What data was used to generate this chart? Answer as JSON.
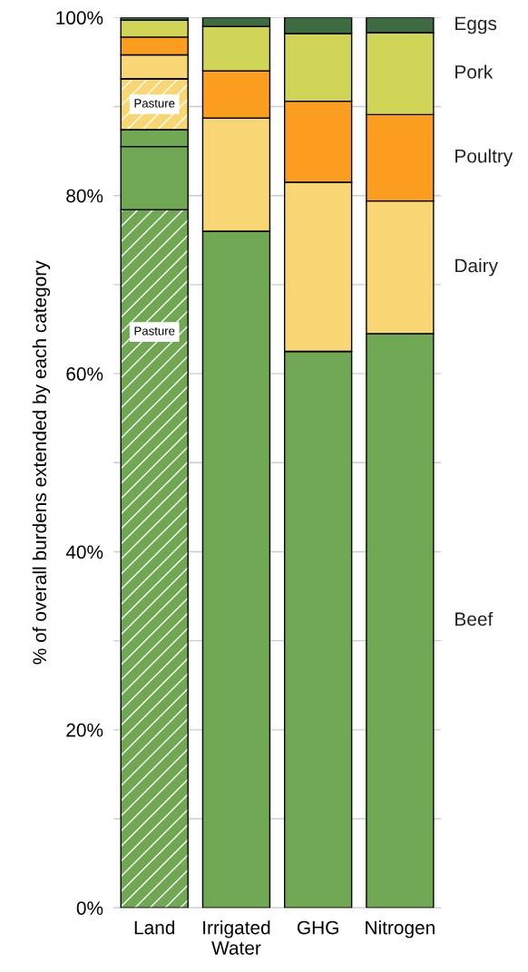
{
  "chart_data": {
    "type": "bar",
    "stacked": true,
    "ylabel": "% of overall burdens extended by each category",
    "categories": [
      "Land",
      "Irrigated\nWater",
      "GHG",
      "Nitrogen"
    ],
    "series": [
      {
        "name": "Pasture",
        "color": "#70a753",
        "values": [
          78.4,
          0,
          0,
          0
        ]
      },
      {
        "name": "Beef",
        "color": "#70a753",
        "values": [
          7.1,
          76.0,
          62.5,
          64.5
        ]
      },
      {
        "color": "#70a753",
        "values": [
          1.9,
          0,
          0,
          0
        ]
      },
      {
        "name": "Pasture",
        "color": "#f8d673",
        "values": [
          5.7,
          0,
          0,
          0
        ]
      },
      {
        "name": "Dairy",
        "color": "#f8d673",
        "values": [
          2.7,
          12.7,
          19.0,
          14.9
        ]
      },
      {
        "name": "Poultry",
        "color": "#fb9e1f",
        "values": [
          2.0,
          5.3,
          9.1,
          9.7
        ]
      },
      {
        "name": "Pork",
        "color": "#d0d558",
        "values": [
          1.9,
          5.0,
          7.6,
          9.2
        ]
      },
      {
        "name": "Eggs",
        "color": "#3e6b42",
        "values": [
          0.3,
          1.0,
          1.8,
          1.7
        ]
      }
    ],
    "ylim": [
      0,
      100
    ],
    "yticks": [
      {
        "value": 0,
        "label": "0%"
      },
      {
        "value": 10,
        "label": null
      },
      {
        "value": 20,
        "label": "20%"
      },
      {
        "value": 30,
        "label": null
      },
      {
        "value": 40,
        "label": "40%"
      },
      {
        "value": 50,
        "label": null
      },
      {
        "value": 60,
        "label": "60%"
      },
      {
        "value": 70,
        "label": null
      },
      {
        "value": 80,
        "label": "80%"
      },
      {
        "value": 90,
        "label": null
      },
      {
        "value": 100,
        "label": "100%"
      }
    ],
    "grid": "y",
    "legend": false
  }
}
